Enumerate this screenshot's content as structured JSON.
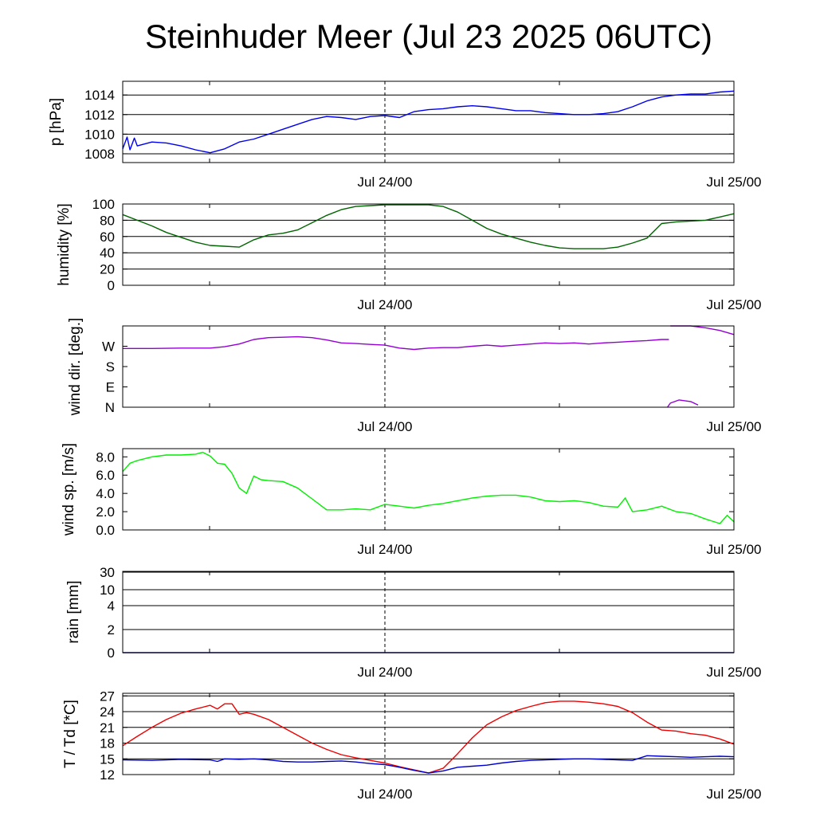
{
  "title": "Steinhuder Meer (Jul 23 2025 06UTC)",
  "colors": {
    "pressure": "#0000ee",
    "humidity": "#006400",
    "wind_dir": "#9400d3",
    "wind_sp": "#00ee00",
    "rain": "#000080",
    "temperature": "#ee0000",
    "dewpoint": "#0000cc",
    "grid": "#000000"
  },
  "chart_data": [
    {
      "type": "line",
      "ylabel": "p [hPa]",
      "x_ticks": [
        "Jul 24/00",
        "Jul 25/00"
      ],
      "xlim_hours": [
        0,
        42
      ],
      "ylim": [
        1007.1,
        1015.4
      ],
      "y_ticks": [
        "1008",
        "1010",
        "1012",
        "1014"
      ],
      "y_tick_values": [
        1008,
        1010,
        1012,
        1014
      ],
      "gridlines": [
        1008,
        1010,
        1012,
        1014
      ],
      "series": [
        {
          "color_key": "pressure",
          "x": [
            0,
            0.3,
            0.5,
            0.8,
            1,
            2,
            3,
            4,
            5,
            6,
            7,
            8,
            9,
            10,
            11,
            12,
            13,
            14,
            15,
            16,
            17,
            18,
            19,
            20,
            21,
            22,
            23,
            24,
            25,
            26,
            27,
            28,
            29,
            30,
            31,
            32,
            33,
            34,
            35,
            36,
            37,
            38,
            39,
            40,
            41,
            42
          ],
          "y": [
            1008.5,
            1009.7,
            1008.4,
            1009.6,
            1008.8,
            1009.2,
            1009.1,
            1008.8,
            1008.4,
            1008.1,
            1008.5,
            1009.2,
            1009.5,
            1010,
            1010.5,
            1011,
            1011.5,
            1011.8,
            1011.7,
            1011.5,
            1011.8,
            1011.9,
            1011.7,
            1012.3,
            1012.5,
            1012.6,
            1012.8,
            1012.9,
            1012.8,
            1012.6,
            1012.4,
            1012.4,
            1012.2,
            1012.1,
            1012.0,
            1012.0,
            1012.1,
            1012.3,
            1012.8,
            1013.4,
            1013.8,
            1014.0,
            1014.1,
            1014.1,
            1014.3,
            1014.4
          ]
        }
      ]
    },
    {
      "type": "line",
      "ylabel": "humidity [%]",
      "x_ticks": [
        "Jul 24/00",
        "Jul 25/00"
      ],
      "xlim_hours": [
        0,
        42
      ],
      "ylim": [
        0,
        100
      ],
      "y_ticks": [
        "0",
        "20",
        "40",
        "60",
        "80",
        "100"
      ],
      "y_tick_values": [
        0,
        20,
        40,
        60,
        80,
        100
      ],
      "gridlines": [
        20,
        40,
        60,
        80
      ],
      "series": [
        {
          "color_key": "humidity",
          "x": [
            0,
            1,
            2,
            3,
            4,
            5,
            6,
            7,
            8,
            9,
            10,
            11,
            12,
            13,
            14,
            15,
            16,
            17,
            18,
            19,
            20,
            21,
            22,
            23,
            24,
            25,
            26,
            27,
            28,
            29,
            30,
            31,
            32,
            33,
            34,
            35,
            36,
            37,
            38,
            39,
            40,
            41,
            42
          ],
          "y": [
            87,
            80,
            73,
            65,
            59,
            53,
            49,
            48,
            47,
            56,
            62,
            64,
            68,
            77,
            86,
            93,
            97,
            98,
            99,
            99,
            99,
            99,
            97,
            90,
            80,
            70,
            63,
            58,
            53,
            49,
            46,
            45,
            45,
            45,
            47,
            52,
            58,
            76,
            78,
            79,
            80,
            84,
            88
          ]
        }
      ]
    },
    {
      "type": "line",
      "ylabel": "wind dir. [deg.]",
      "x_ticks": [
        "Jul 24/00",
        "Jul 25/00"
      ],
      "xlim_hours": [
        0,
        42
      ],
      "ylim_deg": [
        0,
        360
      ],
      "y_ticks": [
        "N",
        "E",
        "S",
        "W"
      ],
      "y_tick_values": [
        0,
        90,
        180,
        270
      ],
      "gridlines": [],
      "series": [
        {
          "color_key": "wind_dir",
          "segments": [
            {
              "x": [
                0,
                2,
                4,
                6,
                7,
                8,
                9,
                10,
                11,
                12,
                13,
                14,
                15,
                16,
                17,
                18,
                19,
                20,
                21,
                22,
                23,
                24,
                25,
                26,
                27,
                28,
                29,
                30,
                31,
                32,
                33,
                34,
                35,
                36,
                37,
                37.5
              ],
              "y": [
                260,
                260,
                262,
                262,
                268,
                280,
                300,
                308,
                310,
                312,
                308,
                298,
                285,
                282,
                278,
                275,
                262,
                256,
                262,
                264,
                264,
                270,
                275,
                270,
                275,
                280,
                285,
                282,
                285,
                280,
                285,
                288,
                292,
                295,
                300,
                300
              ]
            },
            {
              "x": [
                37.6,
                38.5,
                39,
                40,
                41,
                42
              ],
              "y": [
                360,
                360,
                360,
                352,
                340,
                322
              ]
            },
            {
              "x": [
                37.4,
                37.6,
                38.2,
                39,
                39.5
              ],
              "y": [
                0,
                18,
                32,
                25,
                10
              ]
            }
          ]
        }
      ]
    },
    {
      "type": "line",
      "ylabel": "wind sp. [m/s]",
      "x_ticks": [
        "Jul 24/00",
        "Jul 25/00"
      ],
      "xlim_hours": [
        0,
        42
      ],
      "ylim": [
        0,
        8.9
      ],
      "y_ticks": [
        "0.0",
        "2.0",
        "4.0",
        "6.0",
        "8.0"
      ],
      "y_tick_values": [
        0,
        2,
        4,
        6,
        8
      ],
      "gridlines": [],
      "series": [
        {
          "color_key": "wind_sp",
          "x": [
            0,
            0.5,
            1,
            2,
            3,
            4,
            5,
            5.5,
            6,
            6.5,
            7,
            7.5,
            8,
            8.5,
            9,
            9.5,
            10,
            11,
            12,
            13,
            14,
            15,
            16,
            17,
            18,
            19,
            20,
            21,
            22,
            23,
            24,
            25,
            26,
            27,
            28,
            29,
            30,
            31,
            32,
            33,
            34,
            34.5,
            35,
            36,
            37,
            38,
            39,
            40,
            41,
            41.5,
            42
          ],
          "y": [
            6.4,
            7.3,
            7.6,
            8.0,
            8.2,
            8.2,
            8.3,
            8.5,
            8.1,
            7.3,
            7.2,
            6.2,
            4.6,
            4.0,
            5.9,
            5.5,
            5.4,
            5.3,
            4.6,
            3.4,
            2.2,
            2.2,
            2.3,
            2.2,
            2.8,
            2.6,
            2.4,
            2.7,
            2.9,
            3.2,
            3.5,
            3.7,
            3.8,
            3.8,
            3.6,
            3.2,
            3.1,
            3.2,
            3.0,
            2.6,
            2.5,
            3.5,
            2.0,
            2.2,
            2.6,
            2.0,
            1.8,
            1.2,
            0.7,
            1.6,
            0.9
          ]
        }
      ]
    },
    {
      "type": "line",
      "ylabel": "rain [mm]",
      "x_ticks": [
        "Jul 24/00",
        "Jul 25/00"
      ],
      "xlim_hours": [
        0,
        42
      ],
      "y_ticks": [
        "0",
        "2",
        "4",
        "10",
        "30"
      ],
      "y_tick_values": [
        0,
        2,
        4,
        10,
        30
      ],
      "gridlines": [
        2,
        4,
        10,
        30
      ],
      "series": [
        {
          "color_key": "rain",
          "x": [
            0,
            42
          ],
          "y": [
            0,
            0
          ]
        }
      ]
    },
    {
      "type": "line",
      "ylabel": "T / Td [*C]",
      "x_ticks": [
        "Jul 24/00",
        "Jul 25/00"
      ],
      "xlim_hours": [
        0,
        42
      ],
      "ylim": [
        12,
        27.5
      ],
      "y_ticks": [
        "12",
        "15",
        "18",
        "21",
        "24",
        "27"
      ],
      "y_tick_values": [
        12,
        15,
        18,
        21,
        24,
        27
      ],
      "gridlines": [
        15,
        18,
        21,
        24,
        27
      ],
      "series": [
        {
          "color_key": "temperature",
          "x": [
            0,
            1,
            2,
            3,
            4,
            5,
            6,
            6.5,
            7,
            7.5,
            8,
            8.5,
            9,
            10,
            11,
            12,
            13,
            14,
            15,
            16,
            17,
            18,
            19,
            20,
            21,
            22,
            23,
            24,
            25,
            26,
            27,
            28,
            29,
            30,
            31,
            32,
            33,
            34,
            35,
            36,
            37,
            38,
            39,
            40,
            41,
            42
          ],
          "y": [
            17.5,
            19.3,
            21,
            22.5,
            23.7,
            24.5,
            25.2,
            24.5,
            25.5,
            25.5,
            23.5,
            23.8,
            23.5,
            22.5,
            21,
            19.5,
            18,
            16.8,
            15.8,
            15.2,
            14.7,
            14.2,
            13.5,
            12.9,
            12.3,
            13.2,
            16,
            19,
            21.5,
            23,
            24.2,
            25,
            25.7,
            26,
            26,
            25.8,
            25.5,
            25,
            23.8,
            22,
            20.5,
            20.3,
            19.8,
            19.5,
            18.8,
            17.8
          ]
        },
        {
          "color_key": "dewpoint",
          "x": [
            0,
            2,
            4,
            6,
            6.5,
            7,
            8,
            9,
            10,
            11,
            12,
            13,
            14,
            15,
            16,
            17,
            18,
            19,
            20,
            21,
            22,
            23,
            24,
            25,
            26,
            27,
            28,
            29,
            30,
            31,
            32,
            33,
            34,
            35,
            36,
            37,
            38,
            39,
            40,
            41,
            42
          ],
          "y": [
            14.8,
            14.7,
            14.9,
            14.8,
            14.5,
            15,
            14.9,
            15,
            14.8,
            14.5,
            14.4,
            14.4,
            14.5,
            14.6,
            14.4,
            14.1,
            13.9,
            13.4,
            12.8,
            12.3,
            12.7,
            13.4,
            13.6,
            13.8,
            14.2,
            14.5,
            14.7,
            14.8,
            14.9,
            15,
            15,
            14.9,
            14.8,
            14.7,
            15.6,
            15.5,
            15.4,
            15.3,
            15.4,
            15.5,
            15.4
          ]
        }
      ]
    }
  ]
}
